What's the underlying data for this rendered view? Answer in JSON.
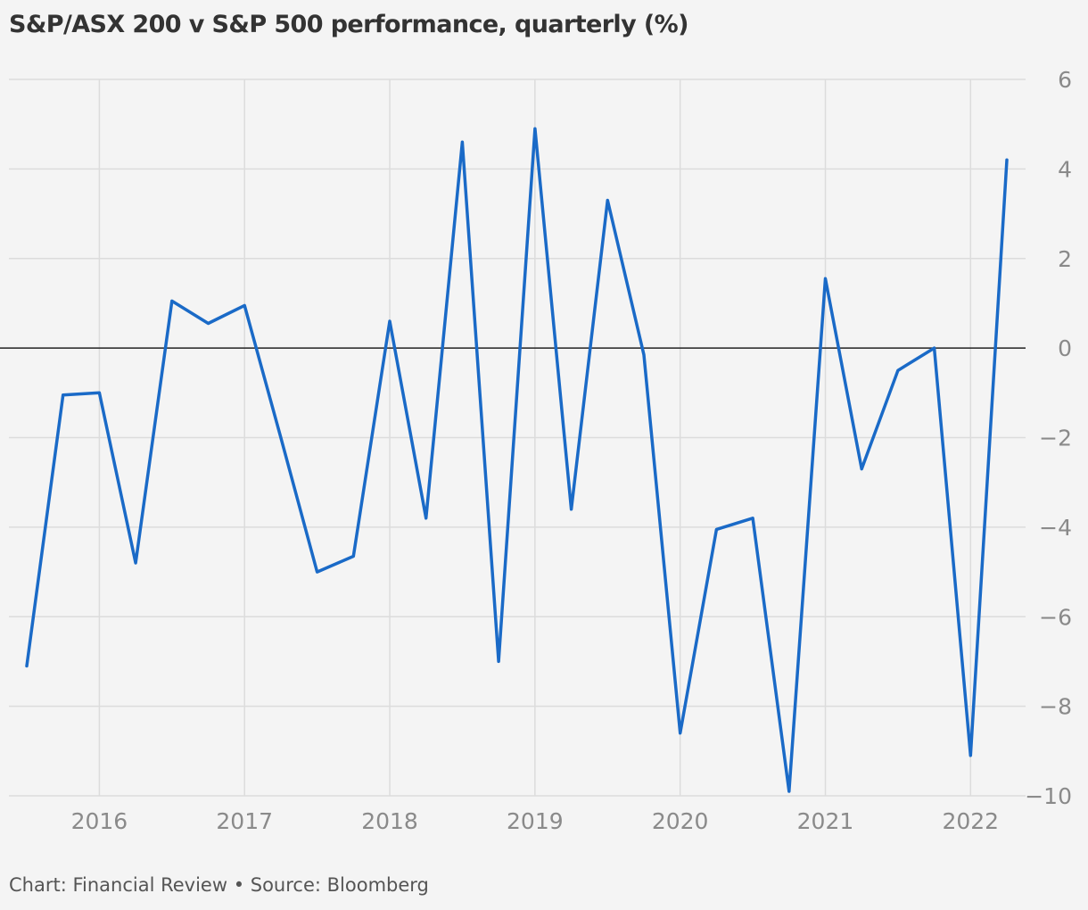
{
  "chart_data": {
    "type": "line",
    "title": "S&P/ASX 200 v S&P 500 performance, quarterly (%)",
    "footer": "Chart: Financial Review • Source: Bloomberg",
    "xlabel": "",
    "ylabel": "",
    "ylim": [
      -10,
      6
    ],
    "yticks": [
      6,
      4,
      2,
      0,
      -2,
      -4,
      -6,
      -8,
      -10
    ],
    "ytick_labels": [
      "6",
      "4",
      "2",
      "0",
      "−2",
      "−4",
      "−6",
      "−8",
      "−10"
    ],
    "xlim": [
      2015.5,
      2022.25
    ],
    "xticks": [
      2016,
      2017,
      2018,
      2019,
      2020,
      2021,
      2022
    ],
    "xtick_labels": [
      "2016",
      "2017",
      "2018",
      "2019",
      "2020",
      "2021",
      "2022"
    ],
    "grid": true,
    "y_axis_position": "right",
    "series": [
      {
        "color": "#1a6ac7",
        "x": [
          2015.5,
          2015.75,
          2016.0,
          2016.25,
          2016.5,
          2016.75,
          2017.0,
          2017.25,
          2017.5,
          2017.75,
          2018.0,
          2018.25,
          2018.5,
          2018.75,
          2019.0,
          2019.25,
          2019.5,
          2019.75,
          2020.0,
          2020.25,
          2020.5,
          2020.75,
          2021.0,
          2021.25,
          2021.5,
          2021.75,
          2022.0,
          2022.25
        ],
        "values": [
          -7.1,
          -1.05,
          -1.0,
          -4.8,
          1.05,
          0.55,
          0.95,
          -2.0,
          -5.0,
          -4.65,
          0.6,
          -3.8,
          4.6,
          -7.0,
          4.9,
          -3.6,
          3.3,
          -0.15,
          -8.6,
          -4.05,
          -3.8,
          -9.9,
          1.55,
          -2.7,
          -0.5,
          0.0,
          -9.1,
          4.2
        ]
      }
    ]
  }
}
